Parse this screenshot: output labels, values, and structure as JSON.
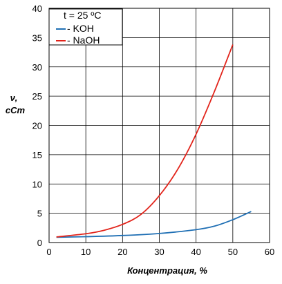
{
  "chart_data": {
    "type": "line",
    "xlabel": "Концентрация, %",
    "ylabel_line1": "ν,",
    "ylabel_line2": "cCm",
    "xlim": [
      0,
      60
    ],
    "ylim": [
      0,
      40
    ],
    "x_ticks": [
      0,
      10,
      20,
      30,
      40,
      50,
      60
    ],
    "y_ticks": [
      0,
      5,
      10,
      15,
      20,
      25,
      30,
      35,
      40
    ],
    "grid": true,
    "legend_position": "top-left",
    "legend_title": "t = 25 ºC",
    "series": [
      {
        "name": "- KOH",
        "color": "#1f6fb4",
        "x": [
          2,
          10,
          20,
          30,
          40,
          45,
          50,
          55
        ],
        "y": [
          0.9,
          1.0,
          1.2,
          1.55,
          2.2,
          2.8,
          3.9,
          5.3
        ]
      },
      {
        "name": "- NaOH",
        "color": "#e2231a",
        "x": [
          2,
          10,
          15,
          20,
          25,
          30,
          35,
          40,
          45,
          50
        ],
        "y": [
          0.95,
          1.5,
          2.1,
          3.1,
          4.8,
          8.0,
          12.5,
          18.5,
          25.8,
          33.8
        ]
      }
    ]
  }
}
